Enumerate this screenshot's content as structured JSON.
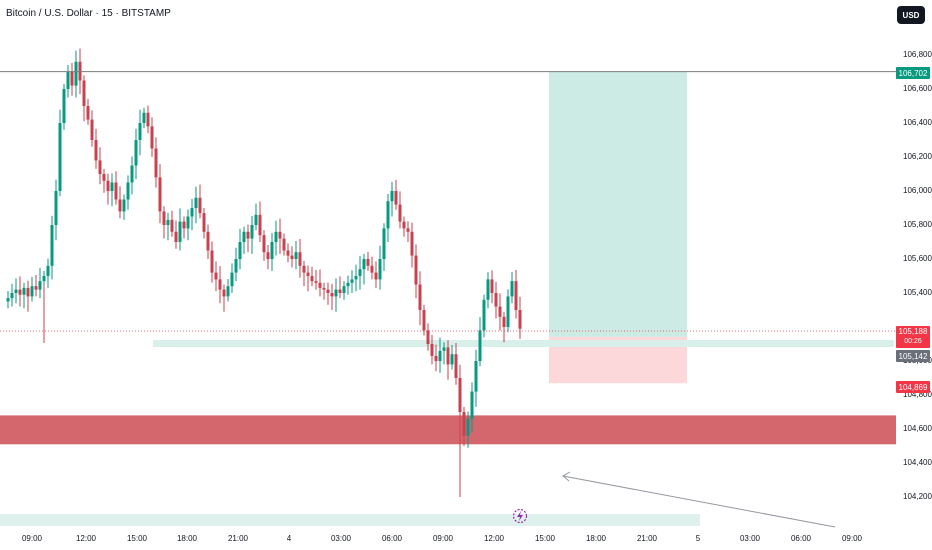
{
  "header": {
    "title": "Bitcoin / U.S. Dollar · 15 · BITSTAMP",
    "currency_button": "USD"
  },
  "price_axis": {
    "ticks": [
      "106,800",
      "106,600",
      "106,400",
      "106,200",
      "106,000",
      "105,800",
      "105,600",
      "105,400",
      "105,000",
      "104,800",
      "104,600",
      "104,400",
      "104,200"
    ],
    "tick_values": [
      106800,
      106600,
      106400,
      106200,
      106000,
      105800,
      105600,
      105400,
      105000,
      104800,
      104600,
      104400,
      104200
    ],
    "labels": {
      "target": "106,702",
      "last": "105,188",
      "countdown": "00:26",
      "entry": "105,142",
      "stop": "104,869"
    }
  },
  "time_axis": {
    "labels": [
      "09:00",
      "12:00",
      "15:00",
      "18:00",
      "21:00",
      "4",
      "03:00",
      "06:00",
      "09:00",
      "12:00",
      "15:00",
      "18:00",
      "21:00",
      "5",
      "03:00",
      "06:00",
      "09:00"
    ]
  },
  "position": {
    "entry": 105142,
    "target": 106702,
    "stop": 104869
  },
  "zones": {
    "demand": [
      104510,
      104680
    ]
  },
  "colors": {
    "up": "#089981",
    "down": "#c8414f",
    "profit_zone": "#cdebe5",
    "loss_zone": "#fcd8db",
    "demand_zone": "#d4676e",
    "grid_line": "#7c7c7c"
  },
  "icons": {
    "bolt": "lightning-bolt-icon"
  }
}
